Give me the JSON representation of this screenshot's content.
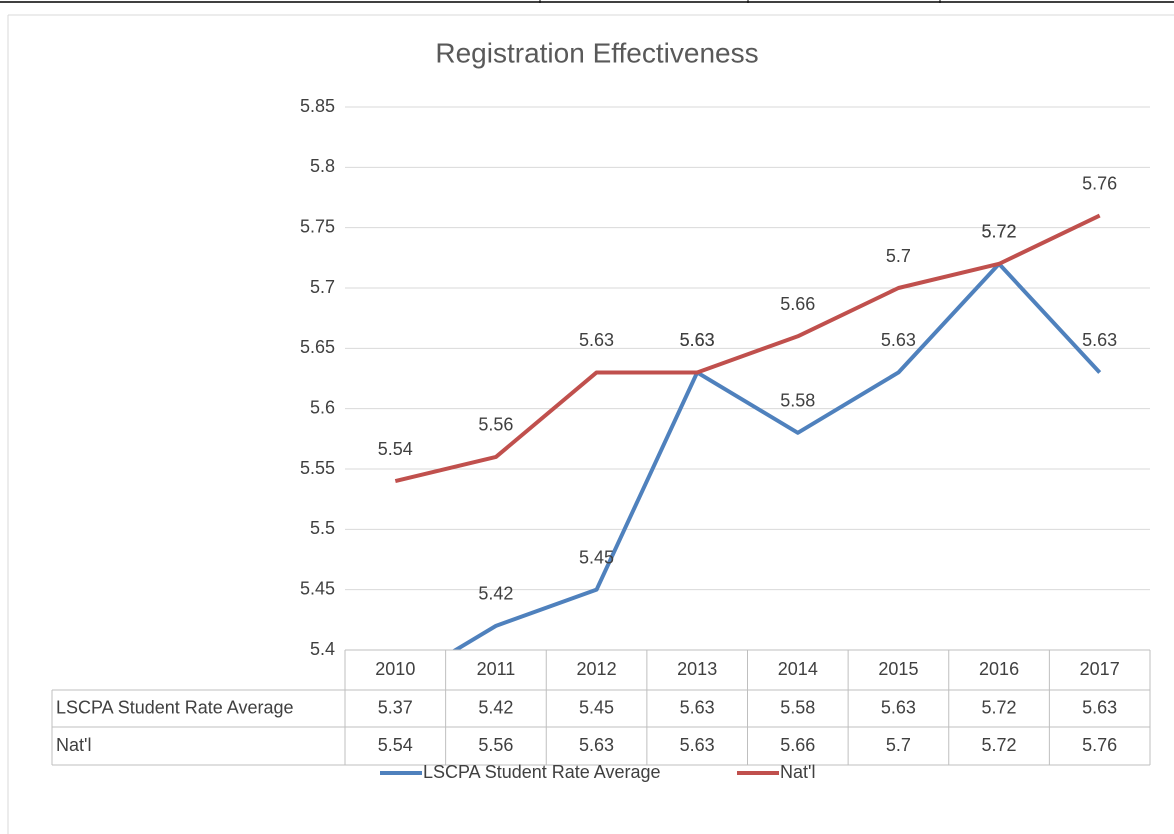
{
  "chart_data": {
    "type": "line",
    "title": "Registration Effectiveness",
    "categories": [
      "2010",
      "2011",
      "2012",
      "2013",
      "2014",
      "2015",
      "2016",
      "2017"
    ],
    "series": [
      {
        "name": "LSCPA Student Rate Average",
        "color": "#4f81bd",
        "values": [
          5.37,
          5.42,
          5.45,
          5.63,
          5.58,
          5.63,
          5.72,
          5.63
        ]
      },
      {
        "name": "Nat'l",
        "color": "#c0504d",
        "values": [
          5.54,
          5.56,
          5.63,
          5.63,
          5.66,
          5.7,
          5.72,
          5.76
        ]
      }
    ],
    "ylim": [
      5.4,
      5.85
    ],
    "yticks": [
      5.85,
      5.8,
      5.75,
      5.7,
      5.65,
      5.6,
      5.55,
      5.5,
      5.45,
      5.4
    ],
    "grid": true,
    "legend": "bottom",
    "data_table": true
  }
}
